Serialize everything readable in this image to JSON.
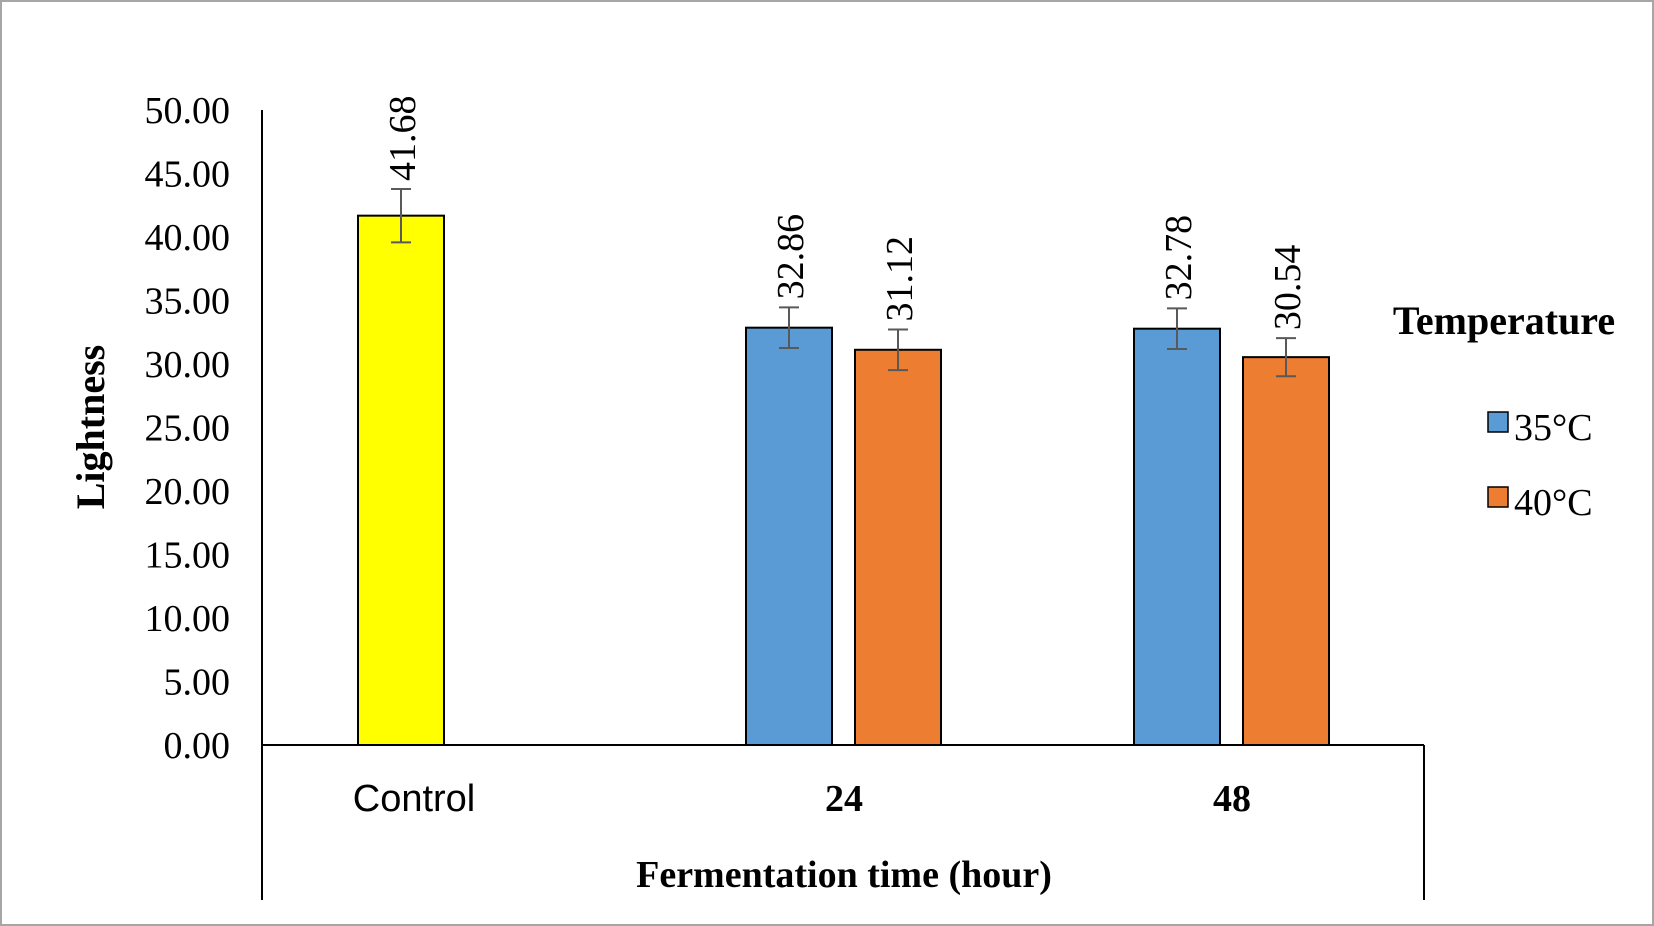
{
  "chart_data": {
    "type": "bar",
    "title": "",
    "xlabel": "Fermentation time (hour)",
    "ylabel": "Lightness",
    "ylim": [
      0,
      50
    ],
    "yticks": [
      "0.00",
      "5.00",
      "10.00",
      "15.00",
      "20.00",
      "25.00",
      "30.00",
      "35.00",
      "40.00",
      "45.00",
      "50.00"
    ],
    "categories": [
      "Control",
      "24",
      "48"
    ],
    "legend_title": "Temperature",
    "legend_position": "right",
    "series": [
      {
        "name": "Control",
        "color": "#ffff00",
        "in_legend": false,
        "values": [
          41.68,
          null,
          null
        ],
        "labels": [
          "41.68",
          null,
          null
        ],
        "errors": [
          2.1,
          null,
          null
        ]
      },
      {
        "name": "35°C",
        "color": "#5b9bd5",
        "in_legend": true,
        "values": [
          null,
          32.86,
          32.78
        ],
        "labels": [
          null,
          "32.86",
          "32.78"
        ],
        "errors": [
          null,
          1.6,
          1.6
        ]
      },
      {
        "name": "40°C",
        "color": "#ed7d31",
        "in_legend": true,
        "values": [
          null,
          31.12,
          30.54
        ],
        "labels": [
          null,
          "31.12",
          "30.54"
        ],
        "errors": [
          null,
          1.6,
          1.5
        ]
      }
    ]
  }
}
